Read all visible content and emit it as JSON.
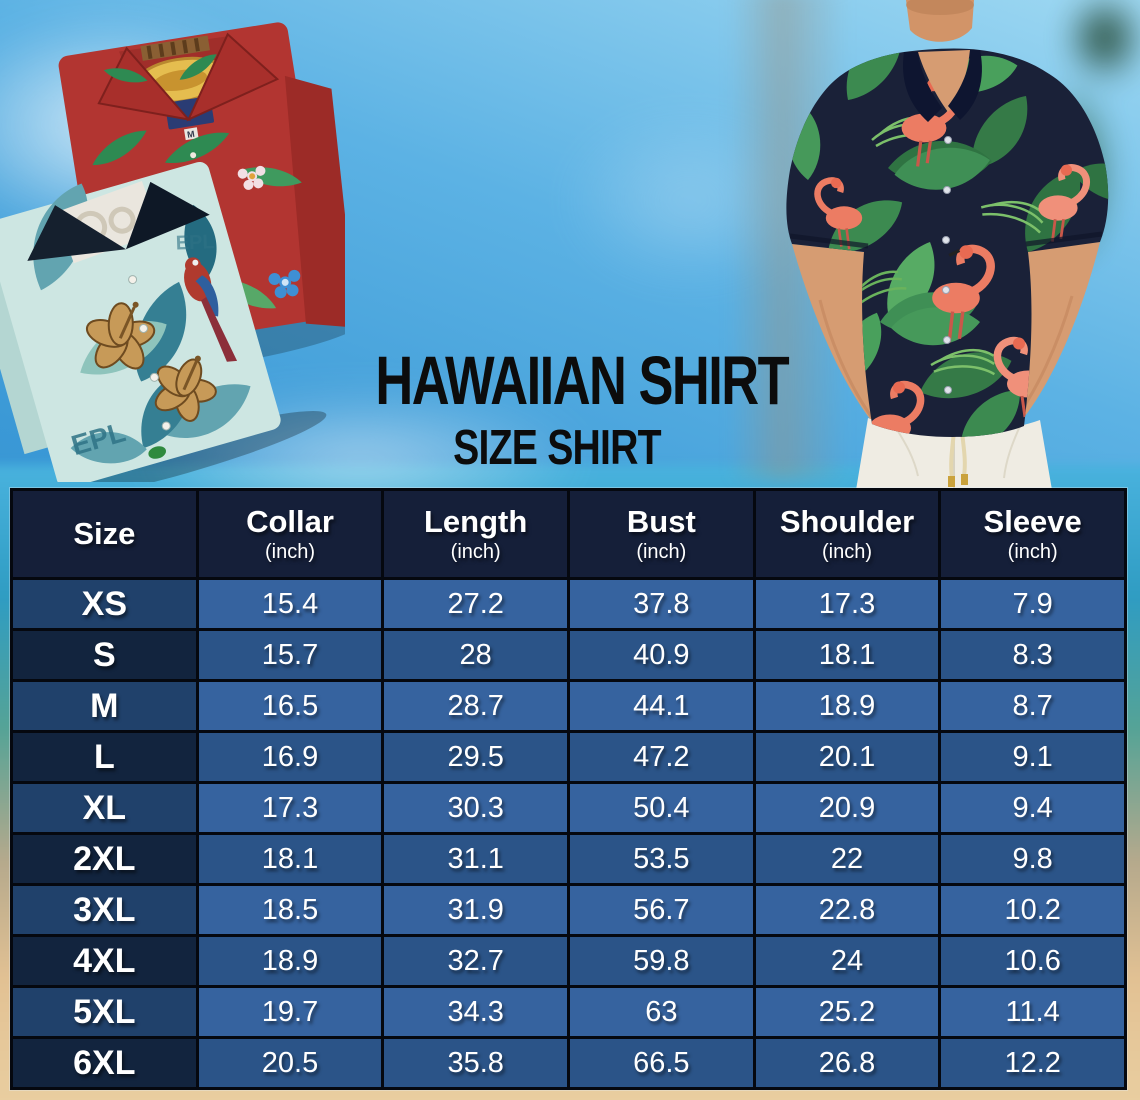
{
  "poster": {
    "title_line1": "HAWAIIAN SHIRT",
    "title_line2": "SIZE SHIRT"
  },
  "photos": {
    "left_photo": "two-folded-hawaiian-shirts",
    "right_photo": "man-wearing-navy-flamingo-hawaiian-shirt",
    "red_shirt_tag": "M",
    "teal_print_letters": "EPL"
  },
  "chart_data": {
    "type": "table",
    "title": "Hawaiian Shirt Size Shirt",
    "columns": [
      {
        "label": "Size",
        "unit": ""
      },
      {
        "label": "Collar",
        "unit": "(inch)"
      },
      {
        "label": "Length",
        "unit": "(inch)"
      },
      {
        "label": "Bust",
        "unit": "(inch)"
      },
      {
        "label": "Shoulder",
        "unit": "(inch)"
      },
      {
        "label": "Sleeve",
        "unit": "(inch)"
      }
    ],
    "rows": [
      [
        "XS",
        "15.4",
        "27.2",
        "37.8",
        "17.3",
        "7.9"
      ],
      [
        "S",
        "15.7",
        "28",
        "40.9",
        "18.1",
        "8.3"
      ],
      [
        "M",
        "16.5",
        "28.7",
        "44.1",
        "18.9",
        "8.7"
      ],
      [
        "L",
        "16.9",
        "29.5",
        "47.2",
        "20.1",
        "9.1"
      ],
      [
        "XL",
        "17.3",
        "30.3",
        "50.4",
        "20.9",
        "9.4"
      ],
      [
        "2XL",
        "18.1",
        "31.1",
        "53.5",
        "22",
        "9.8"
      ],
      [
        "3XL",
        "18.5",
        "31.9",
        "56.7",
        "22.8",
        "10.2"
      ],
      [
        "4XL",
        "18.9",
        "32.7",
        "59.8",
        "24",
        "10.6"
      ],
      [
        "5XL",
        "19.7",
        "34.3",
        "63",
        "25.2",
        "11.4"
      ],
      [
        "6XL",
        "20.5",
        "35.8",
        "66.5",
        "26.8",
        "12.2"
      ]
    ]
  },
  "colors": {
    "header_bg": "#151f39",
    "size_col_odd": "#20416b",
    "size_col_even": "#12243e",
    "cell_odd": "#36639f",
    "cell_even": "#2b5488",
    "border": "#05080f",
    "text": "#ffffff",
    "title_text": "#0c0c0c",
    "sky": "#3b99d6",
    "sand": "#e2c193",
    "shirt_navy": "#1a2138",
    "flamingo": "#ec7c63",
    "leaf_green": "#3f8f55"
  }
}
